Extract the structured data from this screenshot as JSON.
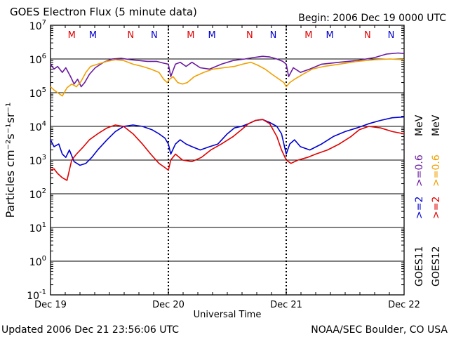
{
  "chart_data": {
    "type": "line",
    "title": "GOES Electron Flux (5 minute data)",
    "begin_label": "Begin: 2006 Dec 19 0000 UTC",
    "ylabel": "Particles cm⁻²s⁻¹sr⁻¹",
    "xlabel": "Universal Time",
    "y_scale": "log",
    "ylim": [
      0.1,
      10000000
    ],
    "y_ticks": [
      {
        "exp": "7",
        "value": 10000000
      },
      {
        "exp": "6",
        "value": 1000000
      },
      {
        "exp": "5",
        "value": 100000
      },
      {
        "exp": "4",
        "value": 10000
      },
      {
        "exp": "3",
        "value": 1000
      },
      {
        "exp": "2",
        "value": 100
      },
      {
        "exp": "1",
        "value": 10
      },
      {
        "exp": "0",
        "value": 1
      },
      {
        "exp": "-1",
        "value": 0.1
      }
    ],
    "x_ticks": [
      "Dec 19",
      "Dec 20",
      "Dec 21",
      "Dec 22"
    ],
    "xlim_days": [
      0,
      3
    ],
    "grid_horizontal": true,
    "threshold_flux": 1000,
    "markers": [
      {
        "label": "M",
        "day": 0.18,
        "color": "#e00000"
      },
      {
        "label": "M",
        "day": 0.36,
        "color": "#0000d0"
      },
      {
        "label": "N",
        "day": 0.68,
        "color": "#e00000"
      },
      {
        "label": "N",
        "day": 0.88,
        "color": "#0000d0"
      },
      {
        "label": "M",
        "day": 1.19,
        "color": "#e00000"
      },
      {
        "label": "M",
        "day": 1.37,
        "color": "#0000d0"
      },
      {
        "label": "N",
        "day": 1.69,
        "color": "#e00000"
      },
      {
        "label": "N",
        "day": 1.89,
        "color": "#0000d0"
      },
      {
        "label": "M",
        "day": 2.19,
        "color": "#e00000"
      },
      {
        "label": "M",
        "day": 2.37,
        "color": "#0000d0"
      },
      {
        "label": "N",
        "day": 2.69,
        "color": "#e00000"
      },
      {
        "label": "N",
        "day": 2.89,
        "color": "#0000d0"
      }
    ],
    "legend": [
      {
        "satellite": "GOES11",
        "low_label": ">=2",
        "high_label": ">=0.6",
        "low_color": "#0000d0",
        "high_color": "#6a1aa0"
      },
      {
        "satellite": "GOES12",
        "low_label": ">=2",
        "high_label": ">=0.6",
        "low_color": "#e00000",
        "high_color": "#f0a000"
      }
    ],
    "legend_unit": "MeV",
    "series": [
      {
        "name": "GOES11 >=0.6 MeV",
        "color": "#6a1aa0",
        "x": [
          0,
          0.03,
          0.06,
          0.1,
          0.13,
          0.17,
          0.2,
          0.23,
          0.26,
          0.29,
          0.33,
          0.38,
          0.45,
          0.52,
          0.6,
          0.68,
          0.75,
          0.82,
          0.9,
          0.96,
          1.0,
          1.02,
          1.06,
          1.1,
          1.15,
          1.2,
          1.27,
          1.35,
          1.45,
          1.55,
          1.65,
          1.72,
          1.8,
          1.86,
          1.92,
          1.97,
          2.0,
          2.02,
          2.06,
          2.12,
          2.2,
          2.3,
          2.45,
          2.6,
          2.75,
          2.85,
          2.95,
          3.0
        ],
        "y": [
          700000,
          500000,
          600000,
          400000,
          550000,
          300000,
          180000,
          250000,
          150000,
          200000,
          350000,
          550000,
          800000,
          1000000,
          1050000,
          950000,
          900000,
          850000,
          850000,
          750000,
          700000,
          300000,
          700000,
          800000,
          600000,
          800000,
          550000,
          500000,
          700000,
          900000,
          1000000,
          1100000,
          1200000,
          1150000,
          1000000,
          850000,
          700000,
          300000,
          550000,
          400000,
          500000,
          700000,
          800000,
          900000,
          1100000,
          1400000,
          1500000,
          1450000
        ]
      },
      {
        "name": "GOES12 >=0.6 MeV",
        "color": "#f0a000",
        "x": [
          0,
          0.03,
          0.06,
          0.1,
          0.14,
          0.18,
          0.22,
          0.26,
          0.3,
          0.34,
          0.4,
          0.48,
          0.55,
          0.62,
          0.7,
          0.78,
          0.85,
          0.92,
          0.96,
          0.99,
          1.01,
          1.04,
          1.08,
          1.12,
          1.16,
          1.22,
          1.3,
          1.38,
          1.47,
          1.56,
          1.63,
          1.7,
          1.76,
          1.82,
          1.88,
          1.94,
          1.98,
          2.0,
          2.03,
          2.07,
          2.14,
          2.22,
          2.32,
          2.45,
          2.6,
          2.75,
          2.88,
          3.0
        ],
        "y": [
          150000,
          120000,
          100000,
          80000,
          140000,
          180000,
          150000,
          220000,
          400000,
          600000,
          700000,
          850000,
          950000,
          900000,
          700000,
          600000,
          500000,
          400000,
          250000,
          200000,
          250000,
          300000,
          200000,
          180000,
          200000,
          300000,
          400000,
          500000,
          550000,
          600000,
          700000,
          800000,
          650000,
          500000,
          350000,
          250000,
          200000,
          150000,
          200000,
          250000,
          350000,
          500000,
          600000,
          700000,
          850000,
          950000,
          1000000,
          950000
        ]
      },
      {
        "name": "GOES11 >=2 MeV",
        "color": "#0000d0",
        "x": [
          0,
          0.03,
          0.07,
          0.1,
          0.13,
          0.16,
          0.2,
          0.25,
          0.3,
          0.35,
          0.4,
          0.48,
          0.55,
          0.62,
          0.7,
          0.78,
          0.86,
          0.92,
          0.97,
          1.0,
          1.02,
          1.06,
          1.1,
          1.15,
          1.2,
          1.27,
          1.35,
          1.42,
          1.5,
          1.56,
          1.62,
          1.68,
          1.74,
          1.8,
          1.86,
          1.92,
          1.96,
          2.0,
          2.03,
          2.07,
          2.12,
          2.2,
          2.3,
          2.4,
          2.5,
          2.6,
          2.7,
          2.8,
          2.9,
          3.0
        ],
        "y": [
          4000,
          2500,
          3000,
          1500,
          1200,
          2000,
          900,
          700,
          800,
          1200,
          2000,
          4000,
          7000,
          10000,
          11000,
          10000,
          8000,
          6000,
          4500,
          3000,
          1500,
          3000,
          4000,
          3000,
          2500,
          2000,
          2500,
          3000,
          6000,
          9000,
          10000,
          12000,
          15000,
          16000,
          13000,
          10000,
          6000,
          1500,
          3000,
          4000,
          2500,
          2000,
          3000,
          5000,
          7000,
          9000,
          12000,
          15000,
          18000,
          19000
        ]
      },
      {
        "name": "GOES12 >=2 MeV",
        "color": "#e00000",
        "x": [
          0,
          0.03,
          0.06,
          0.1,
          0.14,
          0.18,
          0.22,
          0.28,
          0.33,
          0.4,
          0.48,
          0.55,
          0.62,
          0.7,
          0.78,
          0.85,
          0.92,
          0.97,
          1.0,
          1.02,
          1.06,
          1.12,
          1.2,
          1.28,
          1.36,
          1.45,
          1.55,
          1.62,
          1.68,
          1.74,
          1.8,
          1.86,
          1.92,
          1.96,
          2.0,
          2.04,
          2.1,
          2.18,
          2.25,
          2.35,
          2.45,
          2.55,
          2.62,
          2.7,
          2.8,
          2.9,
          3.0
        ],
        "y": [
          500,
          550,
          400,
          300,
          250,
          1000,
          1500,
          2500,
          4000,
          6000,
          9000,
          11000,
          10000,
          6000,
          3000,
          1500,
          800,
          600,
          500,
          1000,
          1500,
          1000,
          900,
          1200,
          2000,
          3000,
          5000,
          8000,
          12000,
          15000,
          16000,
          12000,
          5000,
          2000,
          1000,
          800,
          1000,
          1200,
          1500,
          2000,
          3000,
          5000,
          8000,
          10000,
          9000,
          7000,
          6000
        ]
      }
    ]
  },
  "footer": {
    "updated": "Updated 2006 Dec 21 23:56:06 UTC",
    "source": "NOAA/SEC Boulder, CO USA"
  },
  "colors": {
    "background": "#ffffff",
    "axis": "#000000",
    "goes11_low": "#0000d0",
    "goes11_high": "#6a1aa0",
    "goes12_low": "#e00000",
    "goes12_high": "#f0a000"
  }
}
